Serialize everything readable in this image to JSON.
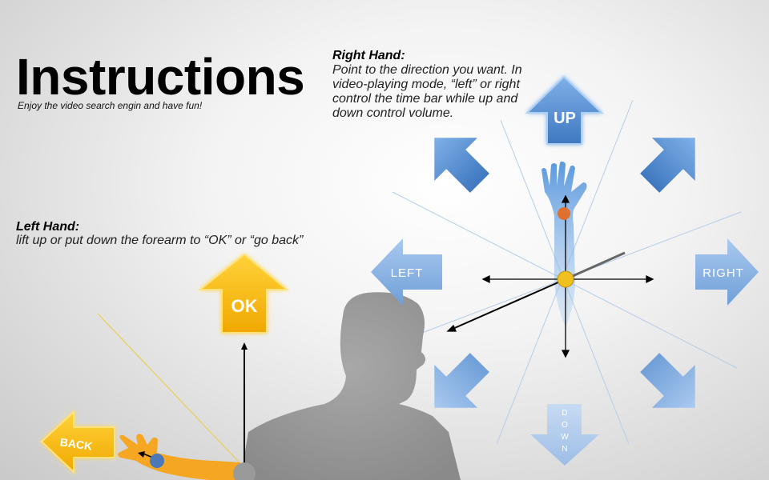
{
  "header": {
    "title": "Instructions",
    "subtitle": "Enjoy the video search engin and have fun!"
  },
  "right_hand": {
    "heading": "Right Hand:",
    "text": "Point to the direction you want. In video-playing mode, “left” or right control the time bar while up and down control volume."
  },
  "left_hand": {
    "heading": "Left Hand:",
    "text": "lift up or put down the forearm to “OK” or “go back”"
  },
  "arrows": {
    "up": "UP",
    "left": "LEFT",
    "right": "RIGHT",
    "down": "DOWN",
    "ok": "OK",
    "back": "BACK"
  },
  "colors": {
    "blue_arrow": "#5b93d3",
    "blue_arrow_light": "#8fb6e3",
    "ok_yellow": "#f7bd00",
    "hand_blue": "#6ea6df",
    "hand_orange": "#f5a623",
    "joint_orange": "#e07030",
    "joint_yellow": "#f0c020"
  }
}
